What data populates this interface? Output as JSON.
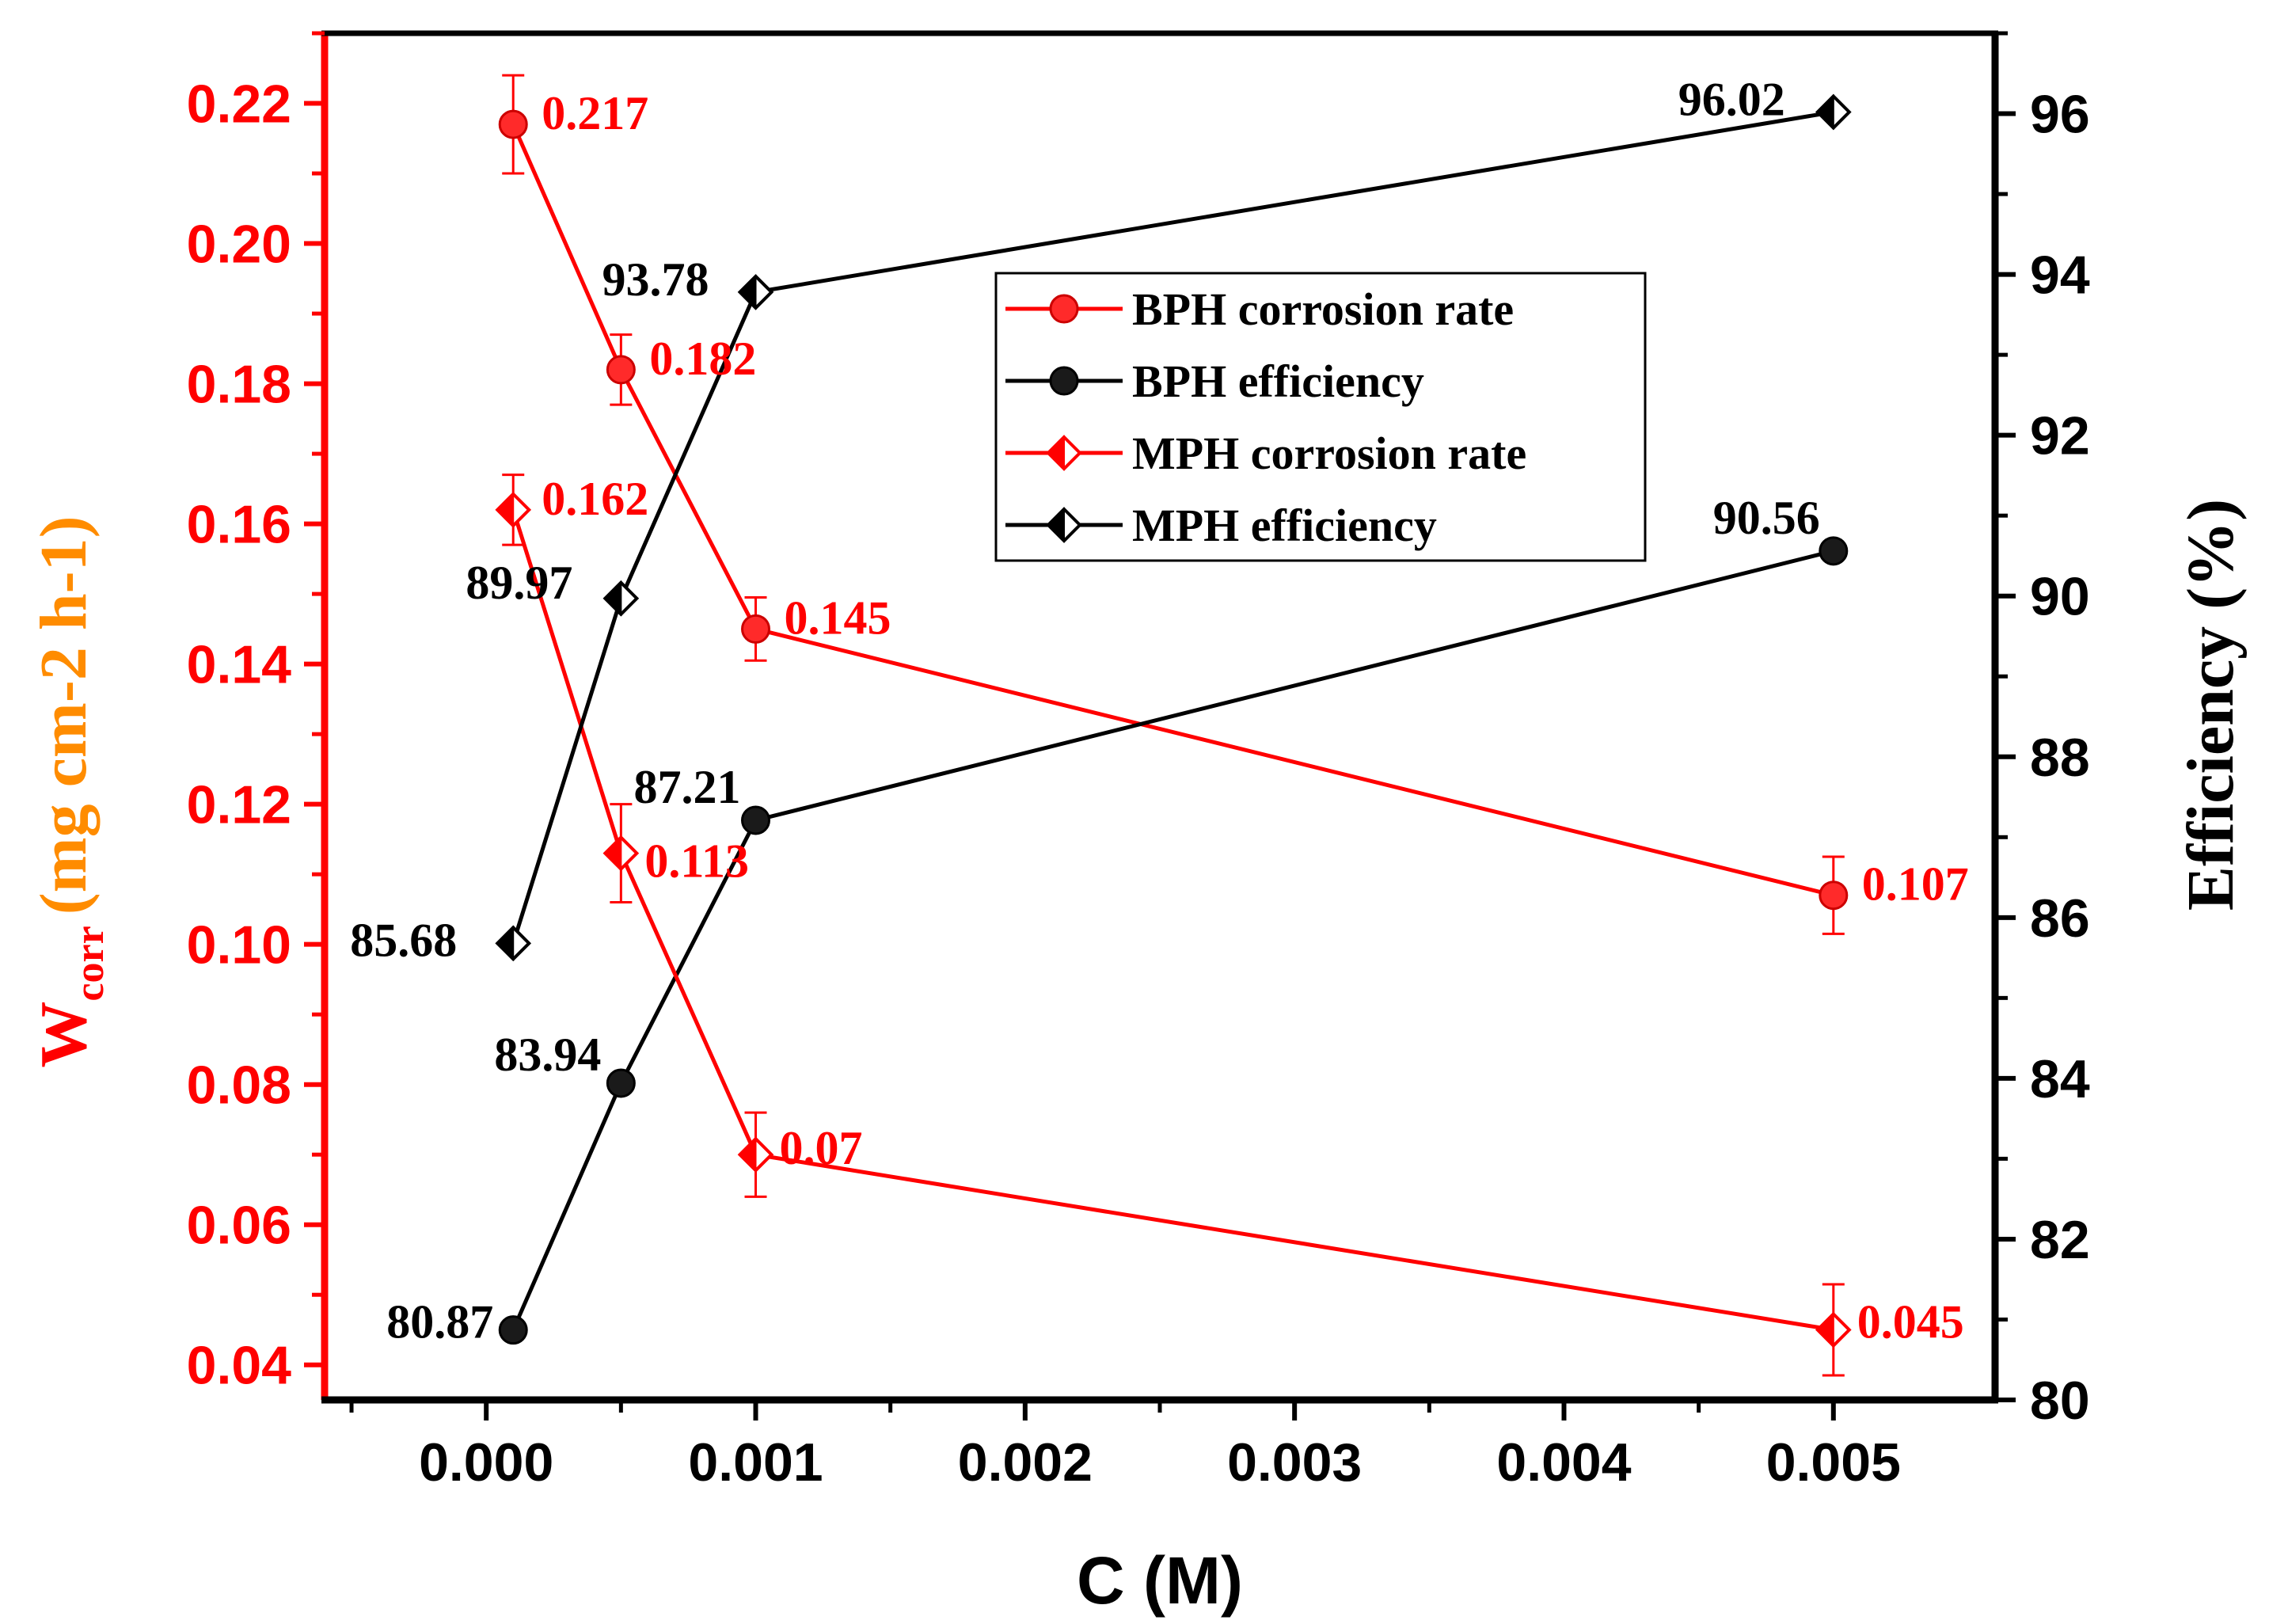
{
  "chart_data": {
    "type": "line",
    "xlabel": "C (M)",
    "ylabel_left": {
      "symbol": "W",
      "subscript": "corr",
      "units": "(mg cm-2 h-1)"
    },
    "ylabel_right": "Efficiency (%)",
    "xlim": [
      -0.0006,
      0.0056
    ],
    "ylim_left": [
      0.035,
      0.23
    ],
    "ylim_right": [
      80,
      97
    ],
    "x_ticks": [
      0.0,
      0.001,
      0.002,
      0.003,
      0.004,
      0.005
    ],
    "x_tick_labels": [
      "0.000",
      "0.001",
      "0.002",
      "0.003",
      "0.004",
      "0.005"
    ],
    "y_left_ticks": [
      0.04,
      0.06,
      0.08,
      0.1,
      0.12,
      0.14,
      0.16,
      0.18,
      0.2,
      0.22
    ],
    "y_left_tick_labels": [
      "0.04",
      "0.06",
      "0.08",
      "0.10",
      "0.12",
      "0.14",
      "0.16",
      "0.18",
      "0.20",
      "0.22"
    ],
    "y_right_ticks": [
      80,
      82,
      84,
      86,
      88,
      90,
      92,
      94,
      96
    ],
    "y_right_tick_labels": [
      "80",
      "82",
      "84",
      "86",
      "88",
      "90",
      "92",
      "94",
      "96"
    ],
    "x": [
      0.0001,
      0.0005,
      0.001,
      0.005
    ],
    "series": [
      {
        "name": "BPH corrosion rate",
        "axis": "left",
        "color": "#ff0000",
        "marker": "circle",
        "values": [
          0.217,
          0.182,
          0.145,
          0.107
        ],
        "errors": [
          0.007,
          0.005,
          0.0045,
          0.0055
        ],
        "labels": [
          "0.217",
          "0.182",
          "0.145",
          "0.107"
        ]
      },
      {
        "name": "BPH efficiency",
        "axis": "right",
        "color": "#000000",
        "marker": "circle",
        "values": [
          80.87,
          83.94,
          87.21,
          90.56
        ],
        "labels": [
          "80.87",
          "83.94",
          "87.21",
          "90.56"
        ]
      },
      {
        "name": "MPH corrosion rate",
        "axis": "left",
        "color": "#ff0000",
        "marker": "diamond",
        "values": [
          0.162,
          0.113,
          0.07,
          0.045
        ],
        "errors": [
          0.005,
          0.007,
          0.006,
          0.0065
        ],
        "labels": [
          "0.162",
          "0.113",
          "0.07",
          "0.045"
        ]
      },
      {
        "name": "MPH efficiency",
        "axis": "right",
        "color": "#000000",
        "marker": "diamond",
        "values": [
          85.68,
          89.97,
          93.78,
          96.02
        ],
        "labels": [
          "85.68",
          "89.97",
          "93.78",
          "96.02"
        ]
      }
    ],
    "legend_position": "top-right (inside plot)",
    "colors": {
      "left_axis": "#ff0000",
      "left_title_units": "#ff8c00",
      "right_axis": "#000000"
    }
  }
}
